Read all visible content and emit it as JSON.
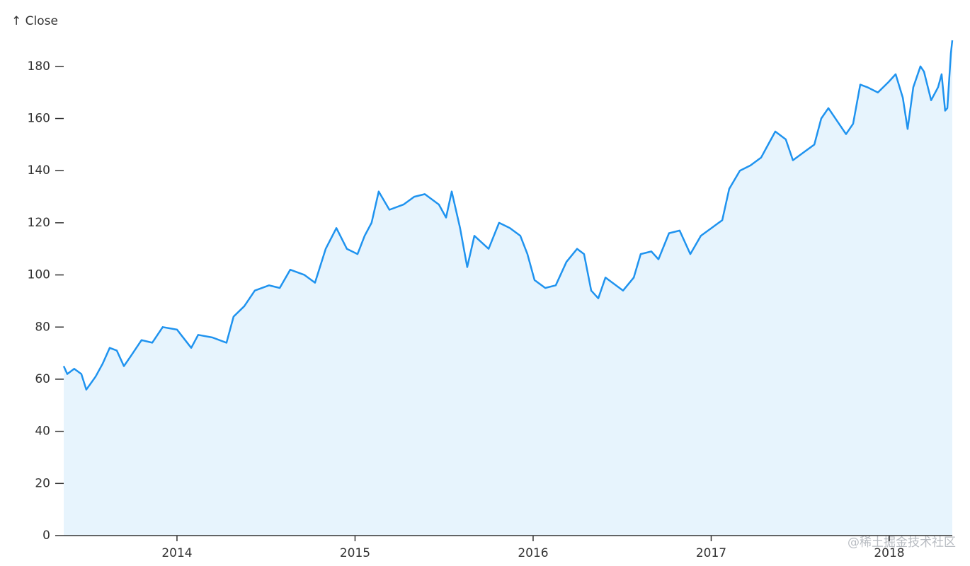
{
  "chart_data": {
    "type": "area",
    "y_label": "↑ Close",
    "watermark": "@稀土掘金技术社区",
    "color": "#1f93ef",
    "fill_color": "#e7f4fd",
    "x": [
      2013.364,
      2013.384,
      2013.423,
      2013.463,
      2013.491,
      2013.543,
      2013.583,
      2013.622,
      2013.662,
      2013.702,
      2013.742,
      2013.801,
      2013.861,
      2013.92,
      2014.0,
      2014.08,
      2014.119,
      2014.199,
      2014.278,
      2014.318,
      2014.378,
      2014.437,
      2014.517,
      2014.577,
      2014.636,
      2014.716,
      2014.775,
      2014.835,
      2014.895,
      2014.954,
      2015.014,
      2015.054,
      2015.093,
      2015.133,
      2015.193,
      2015.272,
      2015.332,
      2015.392,
      2015.471,
      2015.511,
      2015.543,
      2015.59,
      2015.63,
      2015.67,
      2015.75,
      2015.809,
      2015.869,
      2015.928,
      2015.968,
      2016.008,
      2016.068,
      2016.127,
      2016.187,
      2016.247,
      2016.286,
      2016.326,
      2016.366,
      2016.406,
      2016.465,
      2016.505,
      2016.565,
      2016.604,
      2016.664,
      2016.704,
      2016.763,
      2016.823,
      2016.883,
      2016.942,
      2017.002,
      2017.062,
      2017.101,
      2017.161,
      2017.221,
      2017.28,
      2017.32,
      2017.36,
      2017.419,
      2017.459,
      2017.519,
      2017.579,
      2017.618,
      2017.658,
      2017.718,
      2017.757,
      2017.797,
      2017.837,
      2017.877,
      2017.936,
      2017.996,
      2018.036,
      2018.076,
      2018.103,
      2018.135,
      2018.175,
      2018.195,
      2018.235,
      2018.274,
      2018.294,
      2018.314,
      2018.326,
      2018.346,
      2018.354
    ],
    "values": [
      65,
      62,
      64,
      62,
      56,
      61,
      66,
      72,
      71,
      65,
      69,
      75,
      74,
      80,
      79,
      72,
      77,
      76,
      74,
      84,
      88,
      94,
      96,
      95,
      102,
      100,
      97,
      110,
      118,
      110,
      108,
      115,
      120,
      132,
      125,
      127,
      130,
      131,
      127,
      122,
      132,
      118,
      103,
      115,
      110,
      120,
      118,
      115,
      108,
      98,
      95,
      96,
      105,
      110,
      108,
      94,
      91,
      99,
      96,
      94,
      99,
      108,
      109,
      106,
      116,
      117,
      108,
      115,
      118,
      121,
      133,
      140,
      142,
      145,
      150,
      155,
      152,
      144,
      147,
      150,
      160,
      164,
      158,
      154,
      158,
      173,
      172,
      170,
      174,
      177,
      168,
      156,
      172,
      180,
      178,
      167,
      172,
      177,
      163,
      164,
      185,
      190
    ],
    "xlim": [
      2013.364,
      2018.354
    ],
    "xticks": [
      2014,
      2015,
      2016,
      2017,
      2018
    ],
    "ylim": [
      0,
      190
    ],
    "yticks": [
      0,
      20,
      40,
      60,
      80,
      100,
      120,
      140,
      160,
      180
    ]
  }
}
